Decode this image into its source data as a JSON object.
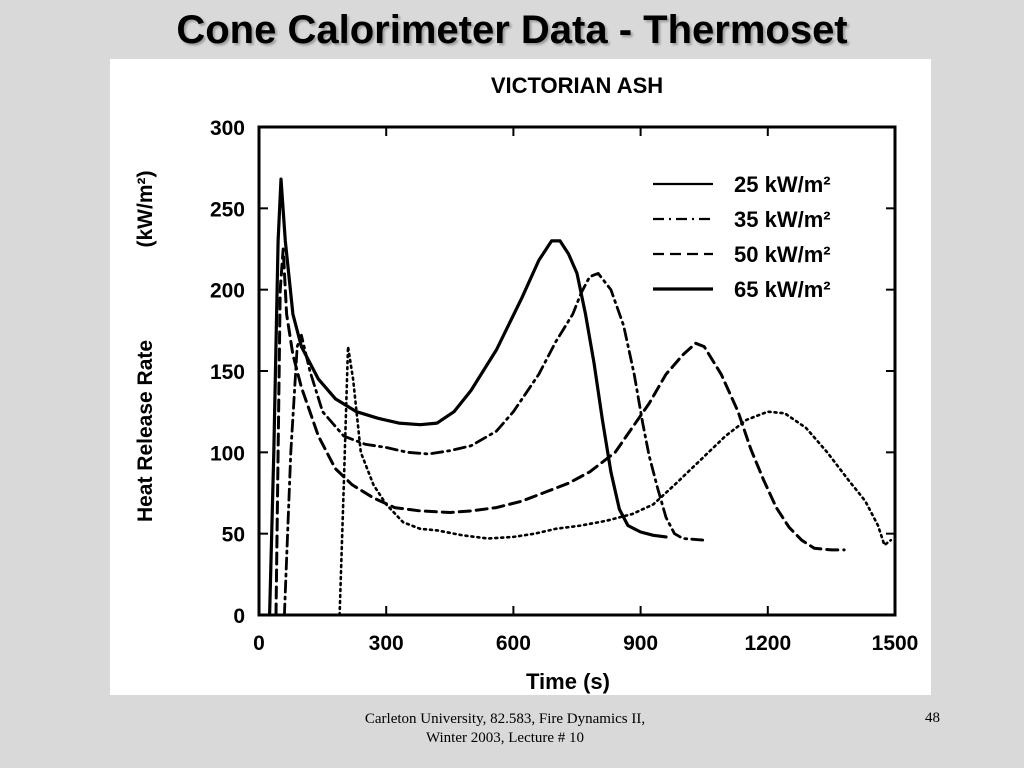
{
  "slide": {
    "title": "Cone Calorimeter Data - Thermoset",
    "footer": "Carleton University, 82.583, Fire Dynamics II, Winter 2003, Lecture # 10",
    "page_number": "48"
  },
  "chart_data": {
    "type": "line",
    "title": "VICTORIAN ASH",
    "xlabel": "Time (s)",
    "ylabel": "Heat Release Rate",
    "ylabel_unit": "(kW/m²)",
    "xlim": [
      0,
      1500
    ],
    "ylim": [
      0,
      300
    ],
    "x_ticks": [
      0,
      300,
      600,
      900,
      1200,
      1500
    ],
    "y_ticks": [
      0,
      50,
      100,
      150,
      200,
      250,
      300
    ],
    "grid": false,
    "legend_position": "top-right",
    "series": [
      {
        "name": "25 kW/m²",
        "style": "dotted",
        "points": [
          [
            190,
            0
          ],
          [
            200,
            80
          ],
          [
            210,
            165
          ],
          [
            222,
            145
          ],
          [
            240,
            100
          ],
          [
            270,
            80
          ],
          [
            300,
            68
          ],
          [
            340,
            57
          ],
          [
            380,
            53
          ],
          [
            420,
            52
          ],
          [
            480,
            49
          ],
          [
            540,
            47
          ],
          [
            600,
            48
          ],
          [
            650,
            50
          ],
          [
            700,
            53
          ],
          [
            760,
            55
          ],
          [
            820,
            58
          ],
          [
            880,
            62
          ],
          [
            930,
            68
          ],
          [
            980,
            80
          ],
          [
            1040,
            95
          ],
          [
            1100,
            110
          ],
          [
            1150,
            120
          ],
          [
            1200,
            125
          ],
          [
            1240,
            124
          ],
          [
            1290,
            115
          ],
          [
            1340,
            100
          ],
          [
            1390,
            83
          ],
          [
            1430,
            70
          ],
          [
            1460,
            55
          ],
          [
            1475,
            43
          ],
          [
            1490,
            46
          ]
        ]
      },
      {
        "name": "35 kW/m²",
        "style": "dash-dot",
        "points": [
          [
            60,
            0
          ],
          [
            75,
            100
          ],
          [
            90,
            165
          ],
          [
            100,
            172
          ],
          [
            120,
            150
          ],
          [
            150,
            125
          ],
          [
            200,
            110
          ],
          [
            250,
            105
          ],
          [
            300,
            103
          ],
          [
            350,
            100
          ],
          [
            400,
            99
          ],
          [
            450,
            101
          ],
          [
            500,
            104
          ],
          [
            560,
            113
          ],
          [
            600,
            125
          ],
          [
            660,
            148
          ],
          [
            700,
            168
          ],
          [
            740,
            185
          ],
          [
            760,
            198
          ],
          [
            780,
            208
          ],
          [
            800,
            210
          ],
          [
            830,
            200
          ],
          [
            860,
            178
          ],
          [
            885,
            148
          ],
          [
            905,
            118
          ],
          [
            920,
            98
          ],
          [
            940,
            78
          ],
          [
            960,
            60
          ],
          [
            980,
            50
          ],
          [
            1000,
            47
          ],
          [
            1050,
            46
          ]
        ]
      },
      {
        "name": "50 kW/m²",
        "style": "dashed",
        "points": [
          [
            40,
            0
          ],
          [
            50,
            200
          ],
          [
            57,
            225
          ],
          [
            65,
            185
          ],
          [
            80,
            160
          ],
          [
            100,
            140
          ],
          [
            140,
            110
          ],
          [
            180,
            90
          ],
          [
            220,
            80
          ],
          [
            270,
            72
          ],
          [
            320,
            66
          ],
          [
            380,
            64
          ],
          [
            450,
            63
          ],
          [
            500,
            64
          ],
          [
            560,
            66
          ],
          [
            620,
            70
          ],
          [
            680,
            76
          ],
          [
            730,
            81
          ],
          [
            780,
            88
          ],
          [
            840,
            100
          ],
          [
            880,
            115
          ],
          [
            920,
            130
          ],
          [
            960,
            148
          ],
          [
            1000,
            160
          ],
          [
            1030,
            167
          ],
          [
            1050,
            165
          ],
          [
            1090,
            148
          ],
          [
            1130,
            125
          ],
          [
            1160,
            102
          ],
          [
            1190,
            83
          ],
          [
            1220,
            66
          ],
          [
            1250,
            54
          ],
          [
            1280,
            46
          ],
          [
            1310,
            41
          ],
          [
            1350,
            40
          ],
          [
            1380,
            40
          ]
        ]
      },
      {
        "name": "65 kW/m²",
        "style": "solid",
        "points": [
          [
            25,
            0
          ],
          [
            35,
            100
          ],
          [
            45,
            230
          ],
          [
            52,
            268
          ],
          [
            62,
            230
          ],
          [
            80,
            185
          ],
          [
            100,
            165
          ],
          [
            140,
            145
          ],
          [
            180,
            133
          ],
          [
            230,
            125
          ],
          [
            280,
            121
          ],
          [
            330,
            118
          ],
          [
            380,
            117
          ],
          [
            420,
            118
          ],
          [
            460,
            125
          ],
          [
            500,
            138
          ],
          [
            560,
            163
          ],
          [
            620,
            195
          ],
          [
            660,
            218
          ],
          [
            690,
            230
          ],
          [
            710,
            230
          ],
          [
            730,
            222
          ],
          [
            750,
            210
          ],
          [
            770,
            185
          ],
          [
            790,
            155
          ],
          [
            810,
            120
          ],
          [
            830,
            88
          ],
          [
            850,
            65
          ],
          [
            870,
            55
          ],
          [
            900,
            51
          ],
          [
            930,
            49
          ],
          [
            960,
            48
          ]
        ]
      }
    ]
  }
}
